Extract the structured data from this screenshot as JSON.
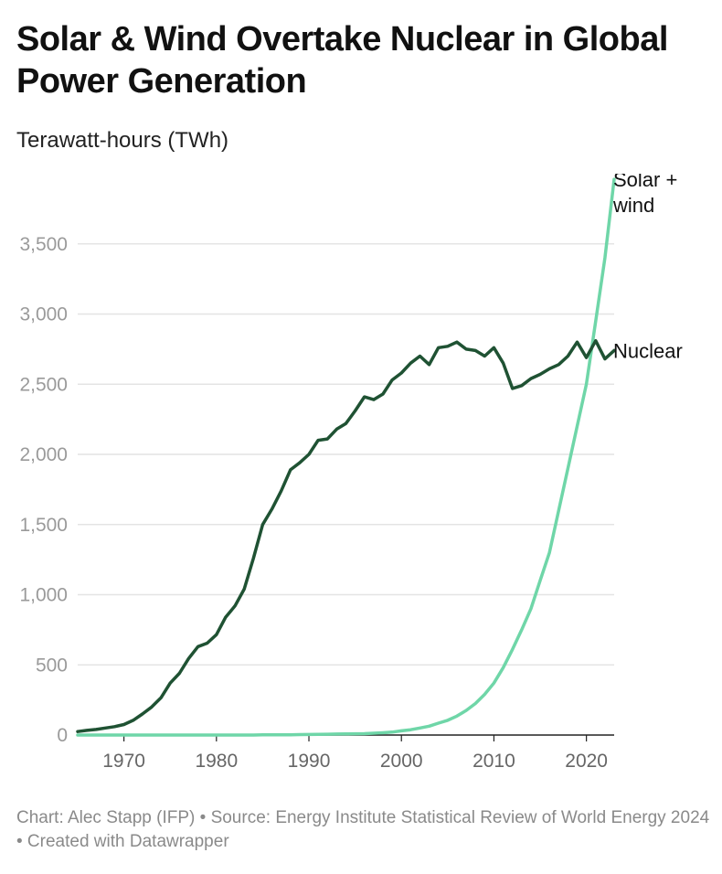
{
  "header": {
    "title": "Solar & Wind Overtake Nuclear in Global Power Generation",
    "subtitle": "Terawatt-hours (TWh)"
  },
  "footer": {
    "credit": "Chart: Alec Stapp (IFP) • Source: Energy Institute Statistical Review of World Energy 2024 • Created with Datawrapper"
  },
  "colors": {
    "nuclear": "#1f5233",
    "solar_wind": "#6fd6a8",
    "grid": "#e4e4e4",
    "baseline": "#222222"
  },
  "chart_data": {
    "type": "line",
    "title": "Solar & Wind Overtake Nuclear in Global Power Generation",
    "ylabel": "Terawatt-hours (TWh)",
    "xlabel": "",
    "xlim": [
      1965,
      2023
    ],
    "ylim": [
      0,
      4000
    ],
    "grid": true,
    "yticks": [
      0,
      500,
      1000,
      1500,
      2000,
      2500,
      3000,
      3500
    ],
    "ytick_labels": [
      "0",
      "500",
      "1,000",
      "1,500",
      "2,000",
      "2,500",
      "3,000",
      "3,500"
    ],
    "xticks": [
      1970,
      1980,
      1990,
      2000,
      2010,
      2020
    ],
    "xtick_labels": [
      "1970",
      "1980",
      "1990",
      "2000",
      "2010",
      "2020"
    ],
    "x": [
      1965,
      1966,
      1967,
      1968,
      1969,
      1970,
      1971,
      1972,
      1973,
      1974,
      1975,
      1976,
      1977,
      1978,
      1979,
      1980,
      1981,
      1982,
      1983,
      1984,
      1985,
      1986,
      1987,
      1988,
      1989,
      1990,
      1991,
      1992,
      1993,
      1994,
      1995,
      1996,
      1997,
      1998,
      1999,
      2000,
      2001,
      2002,
      2003,
      2004,
      2005,
      2006,
      2007,
      2008,
      2009,
      2010,
      2011,
      2012,
      2013,
      2014,
      2015,
      2016,
      2017,
      2018,
      2019,
      2020,
      2021,
      2022,
      2023
    ],
    "series": [
      {
        "name": "Nuclear",
        "label_lines": [
          "Nuclear"
        ],
        "values": [
          25,
          33,
          40,
          50,
          60,
          75,
          105,
          150,
          200,
          265,
          370,
          440,
          545,
          630,
          655,
          715,
          840,
          920,
          1040,
          1260,
          1500,
          1610,
          1740,
          1890,
          1940,
          2000,
          2100,
          2110,
          2180,
          2220,
          2310,
          2410,
          2390,
          2430,
          2530,
          2580,
          2650,
          2700,
          2640,
          2760,
          2770,
          2800,
          2750,
          2740,
          2700,
          2760,
          2650,
          2470,
          2490,
          2540,
          2570,
          2610,
          2640,
          2700,
          2800,
          2690,
          2810,
          2680,
          2740
        ]
      },
      {
        "name": "Solar + wind",
        "label_lines": [
          "Solar +",
          "wind"
        ],
        "values": [
          0,
          0,
          0,
          0,
          0,
          0,
          0,
          0,
          0,
          0,
          0,
          0,
          0,
          0,
          0,
          0,
          0,
          0,
          0,
          0,
          1,
          1,
          1,
          2,
          3,
          4,
          5,
          6,
          7,
          8,
          9,
          10,
          13,
          16,
          21,
          30,
          38,
          50,
          63,
          85,
          105,
          135,
          175,
          225,
          290,
          370,
          480,
          610,
          750,
          900,
          1100,
          1300,
          1600,
          1900,
          2200,
          2500,
          2950,
          3400,
          3960
        ]
      }
    ]
  }
}
